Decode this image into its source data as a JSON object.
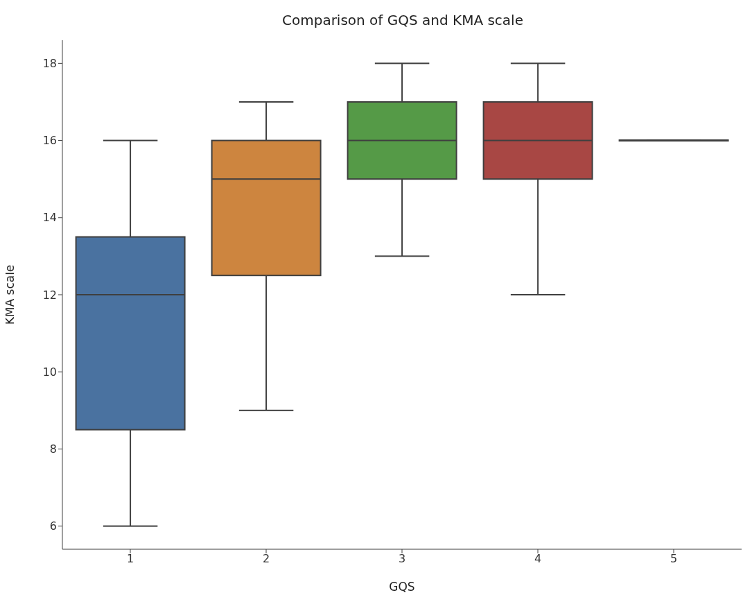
{
  "chart_data": {
    "type": "box",
    "title": "Comparison of GQS and KMA scale",
    "xlabel": "GQS",
    "ylabel": "KMA scale",
    "categories": [
      "1",
      "2",
      "3",
      "4",
      "5"
    ],
    "colors": [
      "#4a72a0",
      "#cd853f",
      "#559a47",
      "#a84744",
      "#7f6fa8"
    ],
    "boxes": [
      {
        "low": 6,
        "q1": 8.5,
        "median": 12,
        "q3": 13.5,
        "high": 16
      },
      {
        "low": 9,
        "q1": 12.5,
        "median": 15,
        "q3": 16,
        "high": 17
      },
      {
        "low": 13,
        "q1": 15,
        "median": 16,
        "q3": 17,
        "high": 18
      },
      {
        "low": 12,
        "q1": 15,
        "median": 16,
        "q3": 17,
        "high": 18
      },
      {
        "low": 16,
        "q1": 16,
        "median": 16,
        "q3": 16,
        "high": 16
      }
    ],
    "ylim": [
      5.4,
      18.6
    ],
    "yticks": [
      6,
      8,
      10,
      12,
      14,
      16,
      18
    ],
    "grid": false,
    "legend": false
  }
}
